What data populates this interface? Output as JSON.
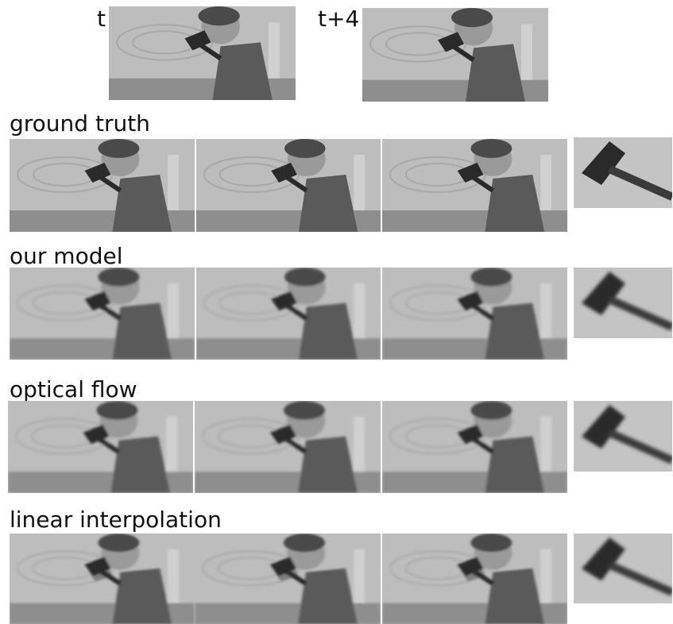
{
  "inputs": {
    "label_t": "t",
    "label_t4": "t+4"
  },
  "rows": [
    {
      "label": "ground truth"
    },
    {
      "label": "our model"
    },
    {
      "label": "optical flow"
    },
    {
      "label": "linear interpolation"
    }
  ],
  "colors": {
    "background": "#ffffff",
    "wood": "#bdbdbd",
    "shirt": "#5a5a5a",
    "hair": "#4a4a4a",
    "hammer": "#2a2a2a"
  }
}
